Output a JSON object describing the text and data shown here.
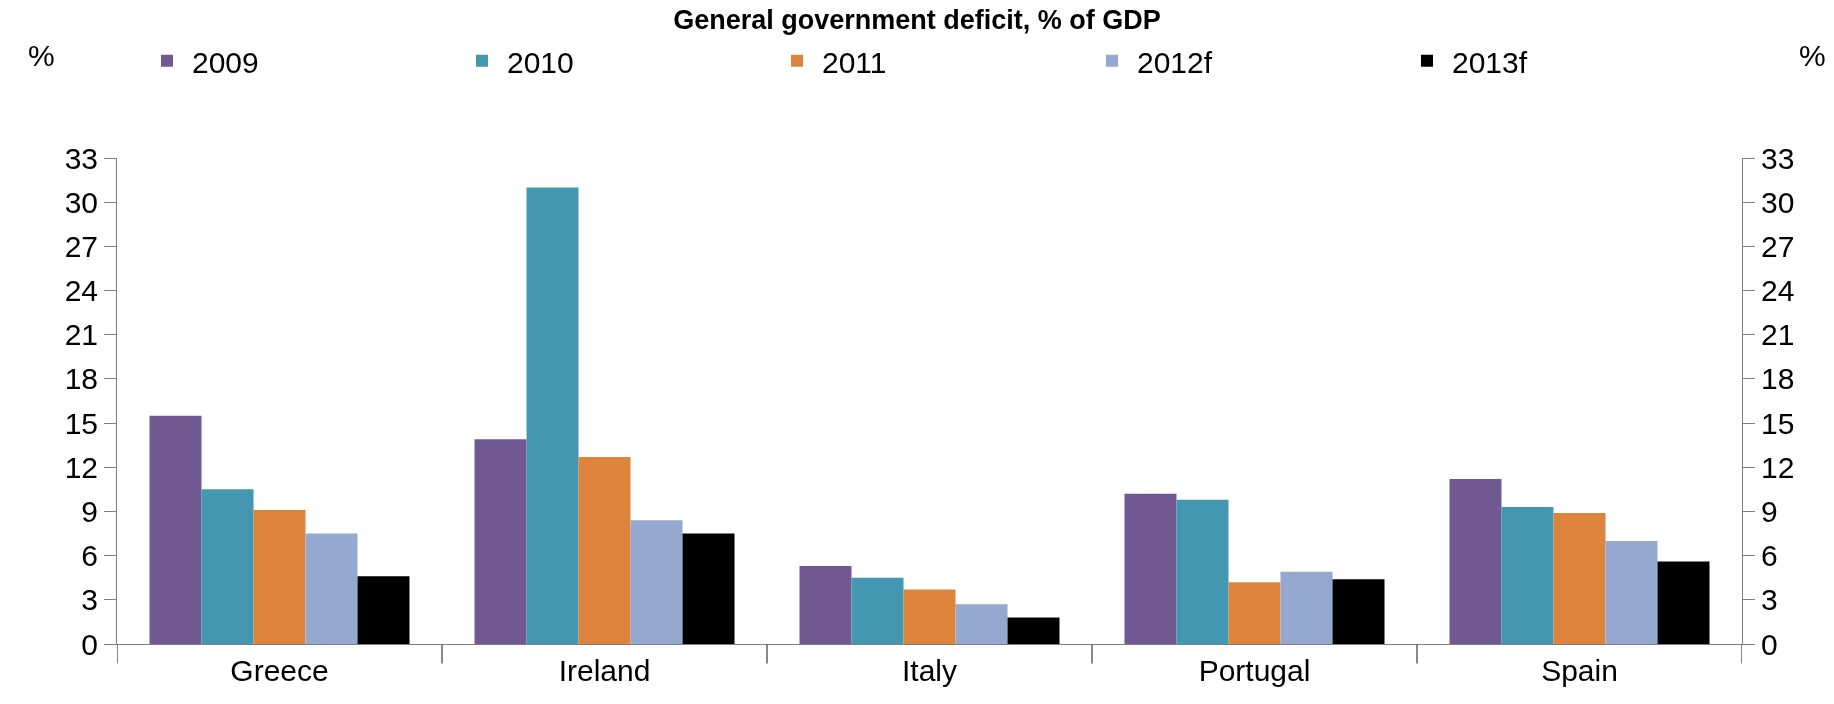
{
  "chart_data": {
    "type": "bar",
    "title": "General government deficit, % of GDP",
    "ylabel": "%",
    "y2label": "%",
    "categories": [
      "Greece",
      "Ireland",
      "Italy",
      "Portugal",
      "Spain"
    ],
    "series": [
      {
        "name": "2009",
        "color": "#705890",
        "values": [
          15.5,
          13.9,
          5.3,
          10.2,
          11.2
        ]
      },
      {
        "name": "2010",
        "color": "#4397b0",
        "values": [
          10.5,
          31.0,
          4.5,
          9.8,
          9.3
        ]
      },
      {
        "name": "2011",
        "color": "#dc843c",
        "values": [
          9.1,
          12.7,
          3.7,
          4.2,
          8.9
        ]
      },
      {
        "name": "2012f",
        "color": "#95a9d0",
        "values": [
          7.5,
          8.4,
          2.7,
          4.9,
          7.0
        ]
      },
      {
        "name": "2013f",
        "color": "#000000",
        "values": [
          4.6,
          7.5,
          1.8,
          4.4,
          5.6
        ]
      }
    ],
    "ylim": [
      0,
      33
    ],
    "yticks": [
      0,
      3,
      6,
      9,
      12,
      15,
      18,
      21,
      24,
      27,
      30,
      33
    ],
    "y2lim": [
      0,
      33
    ],
    "y2ticks": [
      0,
      3,
      6,
      9,
      12,
      15,
      18,
      21,
      24,
      27,
      30,
      33
    ],
    "legend": "top"
  }
}
